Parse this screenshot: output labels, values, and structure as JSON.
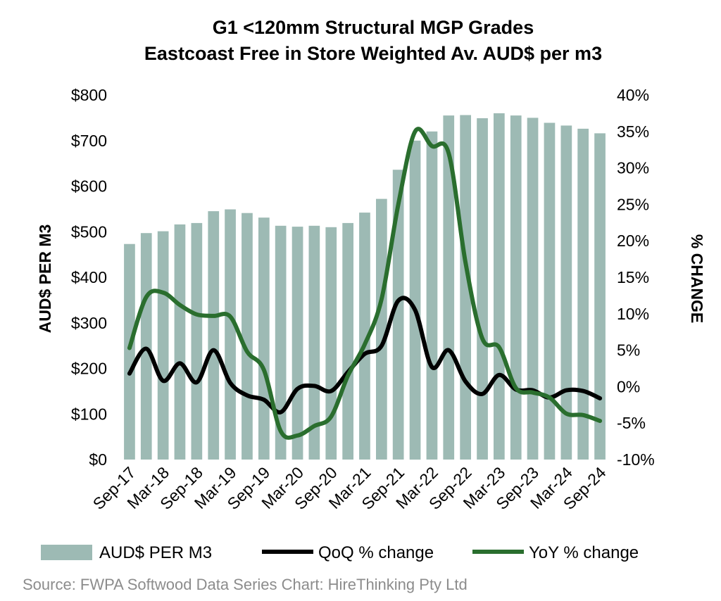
{
  "chart_data": {
    "type": "bar",
    "title": [
      "G1 <120mm Structural MGP Grades",
      "Eastcoast Free in Store Weighted Av. AUD$ per m3"
    ],
    "ylabel": "AUD$ PER M3",
    "y2label": "% CHANGE",
    "ylim": [
      0,
      800
    ],
    "y2lim": [
      -10,
      40
    ],
    "yticks": [
      "$0",
      "$100",
      "$200",
      "$300",
      "$400",
      "$500",
      "$600",
      "$700",
      "$800"
    ],
    "y2ticks": [
      "-10%",
      "-5%",
      "0%",
      "5%",
      "10%",
      "15%",
      "20%",
      "25%",
      "30%",
      "35%",
      "40%"
    ],
    "xticks": [
      "Sep-17",
      "Mar-18",
      "Sep-18",
      "Mar-19",
      "Sep-19",
      "Mar-20",
      "Sep-20",
      "Mar-21",
      "Sep-21",
      "Mar-22",
      "Sep-22",
      "Mar-23",
      "Sep-23",
      "Mar-24",
      "Sep-24"
    ],
    "categories": [
      "Sep-17",
      "Dec-17",
      "Mar-18",
      "Jun-18",
      "Sep-18",
      "Dec-18",
      "Mar-19",
      "Jun-19",
      "Sep-19",
      "Dec-19",
      "Mar-20",
      "Jun-20",
      "Sep-20",
      "Dec-20",
      "Mar-21",
      "Jun-21",
      "Sep-21",
      "Dec-21",
      "Mar-22",
      "Jun-22",
      "Sep-22",
      "Dec-22",
      "Mar-23",
      "Jun-23",
      "Sep-23",
      "Dec-23",
      "Mar-24",
      "Jun-24",
      "Sep-24"
    ],
    "series": [
      {
        "name": "AUD$ PER M3",
        "kind": "bar",
        "axis": "left",
        "color": "#9dbab4",
        "values": [
          473,
          497,
          501,
          516,
          519,
          545,
          549,
          541,
          531,
          513,
          511,
          513,
          510,
          519,
          542,
          572,
          636,
          700,
          720,
          755,
          756,
          749,
          760,
          755,
          750,
          739,
          733,
          726,
          716
        ]
      },
      {
        "name": "QoQ % change",
        "kind": "line",
        "axis": "right",
        "color": "#000000",
        "values": [
          1.8,
          5.2,
          0.8,
          3.2,
          0.6,
          5.0,
          0.5,
          -1.2,
          -1.8,
          -3.5,
          -0.3,
          0.1,
          -0.6,
          2.0,
          4.5,
          5.6,
          11.8,
          10.5,
          2.7,
          5.0,
          0.7,
          -1.0,
          1.6,
          -0.4,
          -0.5,
          -1.5,
          -0.5,
          -0.6,
          -1.6
        ]
      },
      {
        "name": "YoY % change",
        "kind": "line",
        "axis": "right",
        "color": "#2a6e2e",
        "values": [
          5.3,
          12.3,
          12.9,
          11.2,
          9.9,
          9.7,
          9.6,
          4.8,
          2.3,
          -6.1,
          -6.7,
          -5.4,
          -4.1,
          1.5,
          5.8,
          12.0,
          25.0,
          35.0,
          33.0,
          32.0,
          17.0,
          6.6,
          5.4,
          -0.2,
          -0.8,
          -1.5,
          -3.7,
          -3.9,
          -4.7
        ]
      }
    ],
    "legend": {
      "position": "bottom",
      "entries": [
        "AUD$ PER M3",
        "QoQ % change",
        "YoY % change"
      ]
    },
    "source": "Source: FWPA Softwood Data Series Chart: HireThinking Pty Ltd"
  }
}
